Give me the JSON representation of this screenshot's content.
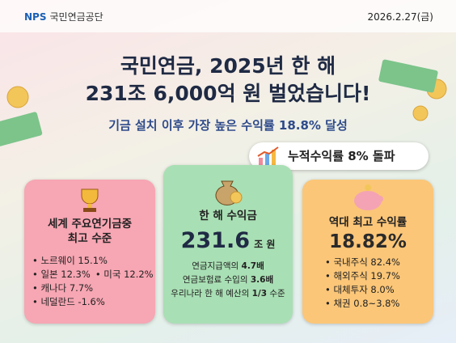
{
  "header": {
    "logo_mark": "NPS",
    "logo_text": "국민연금공단",
    "date": "2026.2.27(금)"
  },
  "headline": {
    "title_line1": "국민연금, 2025년 한 해",
    "title_line2": "231조 6,000억 원 벌었습니다!",
    "subtitle": "기금 설치 이후 가장 높은 수익률 18.8% 달성"
  },
  "badge": "누적수익률 8% 돌파",
  "cards": [
    {
      "title_lines": [
        "세계 주요연기금중",
        "최고 수준"
      ],
      "items": [
        [
          "노르웨이 15.1%"
        ],
        [
          "일본 12.3%",
          "미국 12.2%"
        ],
        [
          "캐나다 7.7%"
        ],
        [
          "네덜란드 -1.6%"
        ]
      ]
    },
    {
      "title": "한 해 수익금",
      "value": "231.6",
      "unit": "조 원",
      "lines": [
        [
          "연금지급액의 ",
          "4.7배"
        ],
        [
          "연금보험료 수입의 ",
          "3.6배"
        ],
        [
          "우리나라 한 해 예산의 ",
          "1/3",
          " 수준"
        ]
      ]
    },
    {
      "title": "역대 최고 수익률",
      "value": "18.82%",
      "items": [
        "국내주식 82.4%",
        "해외주식 19.7%",
        "대체투자 8.0%",
        "채권 0.8~3.8%"
      ]
    }
  ]
}
